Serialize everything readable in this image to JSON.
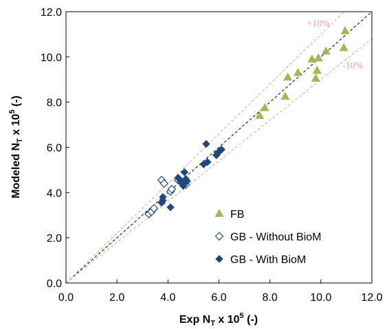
{
  "chart_data": {
    "type": "scatter",
    "title": "",
    "xlabel": {
      "main": "Exp N",
      "sub": "T",
      "mid": " x 10",
      "sup": "5",
      "end": " (-)"
    },
    "ylabel": {
      "main": "Modeled N",
      "sub": "T",
      "mid": " x 10",
      "sup": "5",
      "end": " (-)"
    },
    "xlim": [
      0,
      12
    ],
    "ylim": [
      0,
      12
    ],
    "x_ticks": [
      "0.0",
      "2.0",
      "4.0",
      "6.0",
      "8.0",
      "10.0",
      "12.0"
    ],
    "y_ticks": [
      "0.0",
      "2.0",
      "4.0",
      "6.0",
      "8.0",
      "10.0",
      "12.0"
    ],
    "grid": false,
    "legend_position": "bottom-right",
    "reference_lines": [
      {
        "label": "",
        "slope": 1.0,
        "color": "#000000"
      },
      {
        "label": "+10%",
        "slope": 1.1,
        "color": "#E8A090"
      },
      {
        "label": "-10%",
        "slope": 0.9,
        "color": "#E8A090"
      }
    ],
    "series": [
      {
        "name": "FB",
        "marker": "triangle",
        "color": "#9BBB59",
        "points": [
          [
            7.6,
            7.4
          ],
          [
            7.8,
            7.75
          ],
          [
            8.6,
            8.25
          ],
          [
            8.7,
            9.1
          ],
          [
            9.1,
            9.3
          ],
          [
            9.65,
            9.9
          ],
          [
            9.8,
            9.05
          ],
          [
            9.85,
            9.4
          ],
          [
            9.9,
            9.95
          ],
          [
            10.2,
            10.25
          ],
          [
            10.9,
            10.4
          ],
          [
            10.95,
            11.15
          ]
        ]
      },
      {
        "name": "GB - Without BioM",
        "marker": "open-diamond",
        "color": "#1F497D",
        "points": [
          [
            3.25,
            3.05
          ],
          [
            3.35,
            3.15
          ],
          [
            3.45,
            3.3
          ],
          [
            3.75,
            4.55
          ],
          [
            3.85,
            4.4
          ],
          [
            4.1,
            4.05
          ],
          [
            4.15,
            4.15
          ],
          [
            4.4,
            4.55
          ],
          [
            4.55,
            4.45
          ],
          [
            4.7,
            4.35
          ]
        ]
      },
      {
        "name": "GB - With BioM",
        "marker": "diamond",
        "color": "#1F497D",
        "points": [
          [
            3.75,
            3.55
          ],
          [
            3.8,
            3.65
          ],
          [
            3.8,
            3.8
          ],
          [
            4.1,
            3.35
          ],
          [
            4.4,
            4.65
          ],
          [
            4.5,
            4.5
          ],
          [
            4.55,
            4.4
          ],
          [
            4.6,
            4.3
          ],
          [
            4.65,
            4.9
          ],
          [
            4.7,
            4.6
          ],
          [
            4.7,
            4.45
          ],
          [
            4.75,
            4.5
          ],
          [
            5.4,
            5.25
          ],
          [
            5.5,
            6.15
          ],
          [
            5.55,
            5.35
          ],
          [
            5.9,
            5.65
          ],
          [
            5.95,
            5.75
          ],
          [
            6.0,
            5.8
          ],
          [
            6.1,
            5.9
          ]
        ]
      }
    ]
  }
}
